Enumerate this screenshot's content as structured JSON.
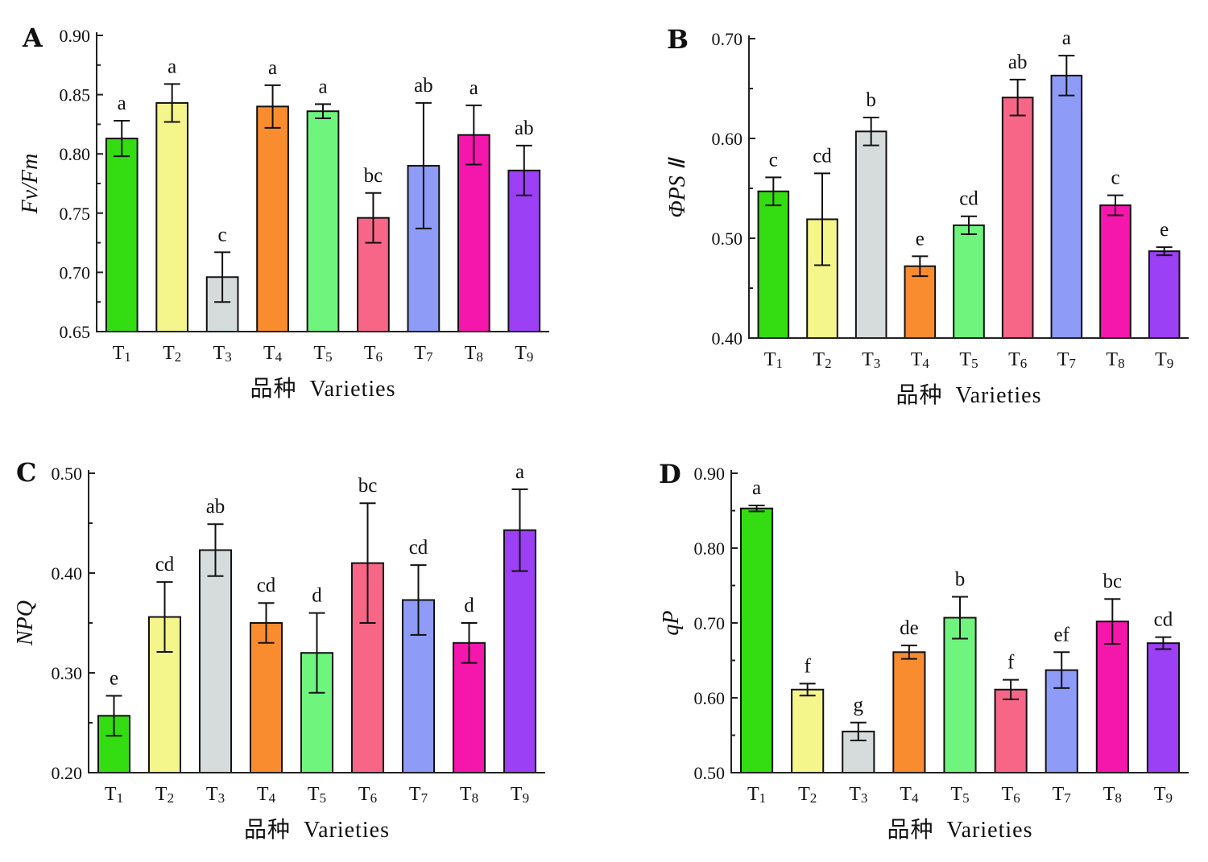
{
  "chart_data": [
    {
      "panel": "A",
      "type": "bar",
      "ylabel": "Fv/Fm",
      "xlabel": "品种  Varieties",
      "categories": [
        "T1",
        "T2",
        "T3",
        "T4",
        "T5",
        "T6",
        "T7",
        "T8",
        "T9"
      ],
      "values": [
        0.813,
        0.843,
        0.696,
        0.84,
        0.836,
        0.746,
        0.79,
        0.816,
        0.786
      ],
      "errors": [
        0.015,
        0.016,
        0.021,
        0.018,
        0.006,
        0.021,
        0.053,
        0.025,
        0.021
      ],
      "significance": [
        "a",
        "a",
        "c",
        "a",
        "a",
        "bc",
        "ab",
        "a",
        "ab"
      ],
      "ylim": [
        0.65,
        0.9
      ],
      "yticks": [
        "0.65",
        "0.70",
        "0.75",
        "0.80",
        "0.85",
        "0.90"
      ]
    },
    {
      "panel": "B",
      "type": "bar",
      "ylabel": "ΦPS Ⅱ",
      "xlabel": "品种  Varieties",
      "categories": [
        "T1",
        "T2",
        "T3",
        "T4",
        "T5",
        "T6",
        "T7",
        "T8",
        "T9"
      ],
      "values": [
        0.547,
        0.519,
        0.607,
        0.472,
        0.513,
        0.641,
        0.663,
        0.533,
        0.487
      ],
      "errors": [
        0.014,
        0.046,
        0.014,
        0.01,
        0.009,
        0.018,
        0.02,
        0.01,
        0.004
      ],
      "significance": [
        "c",
        "cd",
        "b",
        "e",
        "cd",
        "ab",
        "a",
        "c",
        "e"
      ],
      "ylim": [
        0.4,
        0.7
      ],
      "yticks": [
        "0.40",
        "0.50",
        "0.60",
        "0.70"
      ]
    },
    {
      "panel": "C",
      "type": "bar",
      "ylabel": "NPQ",
      "xlabel": "品种  Varieties",
      "categories": [
        "T1",
        "T2",
        "T3",
        "T4",
        "T5",
        "T6",
        "T7",
        "T8",
        "T9"
      ],
      "values": [
        0.257,
        0.356,
        0.423,
        0.35,
        0.32,
        0.41,
        0.373,
        0.33,
        0.443
      ],
      "errors": [
        0.02,
        0.035,
        0.026,
        0.02,
        0.04,
        0.06,
        0.035,
        0.02,
        0.041
      ],
      "significance": [
        "e",
        "cd",
        "ab",
        "cd",
        "d",
        "bc",
        "cd",
        "d",
        "a"
      ],
      "ylim": [
        0.2,
        0.5
      ],
      "yticks": [
        "0.20",
        "0.30",
        "0.40",
        "0.50"
      ]
    },
    {
      "panel": "D",
      "type": "bar",
      "ylabel": "qP",
      "xlabel": "品种  Varieties",
      "categories": [
        "T1",
        "T2",
        "T3",
        "T4",
        "T5",
        "T6",
        "T7",
        "T8",
        "T9"
      ],
      "values": [
        0.853,
        0.611,
        0.555,
        0.661,
        0.707,
        0.611,
        0.637,
        0.702,
        0.673
      ],
      "errors": [
        0.004,
        0.008,
        0.012,
        0.009,
        0.028,
        0.013,
        0.024,
        0.03,
        0.008
      ],
      "significance": [
        "a",
        "f",
        "g",
        "de",
        "b",
        "f",
        "ef",
        "bc",
        "cd"
      ],
      "ylim": [
        0.5,
        0.9
      ],
      "yticks": [
        "0.50",
        "0.60",
        "0.70",
        "0.80",
        "0.90"
      ]
    }
  ],
  "bar_colors": [
    "#33dd11",
    "#f4f58a",
    "#d6dcdc",
    "#f88c2e",
    "#6ff57e",
    "#f76687",
    "#8e9cf7",
    "#f516ac",
    "#9b40f4"
  ]
}
